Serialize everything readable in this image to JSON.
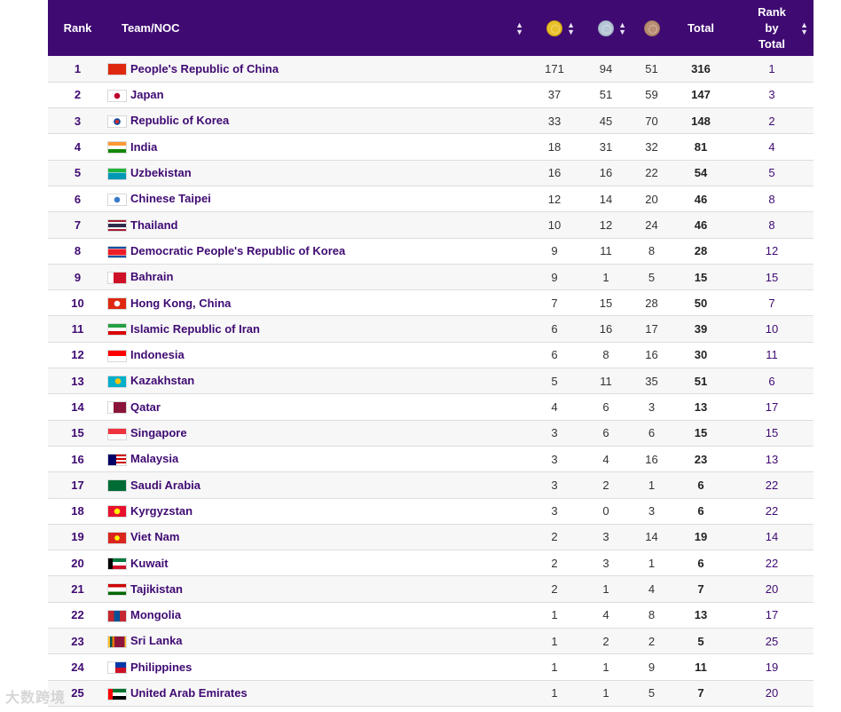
{
  "header": {
    "rank": "Rank",
    "team": "Team/NOC",
    "total": "Total",
    "rank_by_total_line1": "Rank",
    "rank_by_total_line2": "by",
    "rank_by_total_line3": "Total"
  },
  "colors": {
    "header_bg": "#3f0a72",
    "gold": "#e8c02a",
    "silver": "#b7c6d6",
    "bronze": "#b98e74"
  },
  "icons": {
    "gold": "gold-medal-icon",
    "silver": "silver-medal-icon",
    "bronze": "bronze-medal-icon",
    "sort": "sort-arrows-icon"
  },
  "rows": [
    {
      "rank": "1",
      "team": "People's Republic of China",
      "gold": "171",
      "silver": "94",
      "bronze": "51",
      "total": "316",
      "rbt": "1"
    },
    {
      "rank": "2",
      "team": "Japan",
      "gold": "37",
      "silver": "51",
      "bronze": "59",
      "total": "147",
      "rbt": "3"
    },
    {
      "rank": "3",
      "team": "Republic of Korea",
      "gold": "33",
      "silver": "45",
      "bronze": "70",
      "total": "148",
      "rbt": "2"
    },
    {
      "rank": "4",
      "team": "India",
      "gold": "18",
      "silver": "31",
      "bronze": "32",
      "total": "81",
      "rbt": "4"
    },
    {
      "rank": "5",
      "team": "Uzbekistan",
      "gold": "16",
      "silver": "16",
      "bronze": "22",
      "total": "54",
      "rbt": "5"
    },
    {
      "rank": "6",
      "team": "Chinese Taipei",
      "gold": "12",
      "silver": "14",
      "bronze": "20",
      "total": "46",
      "rbt": "8"
    },
    {
      "rank": "7",
      "team": "Thailand",
      "gold": "10",
      "silver": "12",
      "bronze": "24",
      "total": "46",
      "rbt": "8"
    },
    {
      "rank": "8",
      "team": "Democratic People's Republic of Korea",
      "gold": "9",
      "silver": "11",
      "bronze": "8",
      "total": "28",
      "rbt": "12"
    },
    {
      "rank": "9",
      "team": "Bahrain",
      "gold": "9",
      "silver": "1",
      "bronze": "5",
      "total": "15",
      "rbt": "15"
    },
    {
      "rank": "10",
      "team": "Hong Kong, China",
      "gold": "7",
      "silver": "15",
      "bronze": "28",
      "total": "50",
      "rbt": "7"
    },
    {
      "rank": "11",
      "team": "Islamic Republic of Iran",
      "gold": "6",
      "silver": "16",
      "bronze": "17",
      "total": "39",
      "rbt": "10"
    },
    {
      "rank": "12",
      "team": "Indonesia",
      "gold": "6",
      "silver": "8",
      "bronze": "16",
      "total": "30",
      "rbt": "11"
    },
    {
      "rank": "13",
      "team": "Kazakhstan",
      "gold": "5",
      "silver": "11",
      "bronze": "35",
      "total": "51",
      "rbt": "6"
    },
    {
      "rank": "14",
      "team": "Qatar",
      "gold": "4",
      "silver": "6",
      "bronze": "3",
      "total": "13",
      "rbt": "17"
    },
    {
      "rank": "15",
      "team": "Singapore",
      "gold": "3",
      "silver": "6",
      "bronze": "6",
      "total": "15",
      "rbt": "15"
    },
    {
      "rank": "16",
      "team": "Malaysia",
      "gold": "3",
      "silver": "4",
      "bronze": "16",
      "total": "23",
      "rbt": "13"
    },
    {
      "rank": "17",
      "team": "Saudi Arabia",
      "gold": "3",
      "silver": "2",
      "bronze": "1",
      "total": "6",
      "rbt": "22"
    },
    {
      "rank": "18",
      "team": "Kyrgyzstan",
      "gold": "3",
      "silver": "0",
      "bronze": "3",
      "total": "6",
      "rbt": "22"
    },
    {
      "rank": "19",
      "team": "Viet Nam",
      "gold": "2",
      "silver": "3",
      "bronze": "14",
      "total": "19",
      "rbt": "14"
    },
    {
      "rank": "20",
      "team": "Kuwait",
      "gold": "2",
      "silver": "3",
      "bronze": "1",
      "total": "6",
      "rbt": "22"
    },
    {
      "rank": "21",
      "team": "Tajikistan",
      "gold": "2",
      "silver": "1",
      "bronze": "4",
      "total": "7",
      "rbt": "20"
    },
    {
      "rank": "22",
      "team": "Mongolia",
      "gold": "1",
      "silver": "4",
      "bronze": "8",
      "total": "13",
      "rbt": "17"
    },
    {
      "rank": "23",
      "team": "Sri Lanka",
      "gold": "1",
      "silver": "2",
      "bronze": "2",
      "total": "5",
      "rbt": "25"
    },
    {
      "rank": "24",
      "team": "Philippines",
      "gold": "1",
      "silver": "1",
      "bronze": "9",
      "total": "11",
      "rbt": "19"
    },
    {
      "rank": "25",
      "team": "United Arab Emirates",
      "gold": "1",
      "silver": "1",
      "bronze": "5",
      "total": "7",
      "rbt": "20"
    }
  ],
  "watermark": "大数跨境"
}
